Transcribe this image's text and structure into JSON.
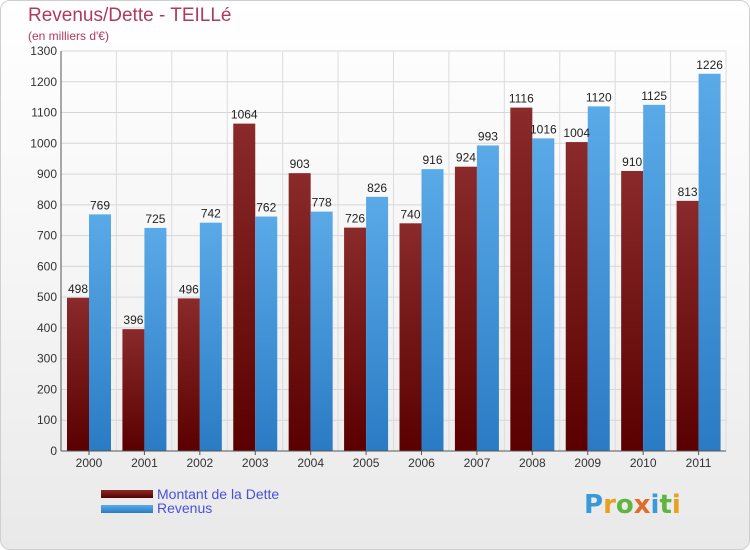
{
  "header": {
    "title": "Revenus/Dette - TEILLé",
    "subtitle": "(en milliers d'€)"
  },
  "colors": {
    "dette": "#7a1414",
    "revenus": "#4a9de2",
    "title": "#b03a5e",
    "legend_text": "#4a50d8"
  },
  "legend": {
    "dette_label": "Montant de la Dette",
    "revenus_label": "Revenus"
  },
  "logo": {
    "text": "Proxiti"
  },
  "chart_data": {
    "type": "bar",
    "title": "Revenus/Dette - TEILLé",
    "ylabel": "(en milliers d'€)",
    "xlabel": "",
    "categories": [
      "2000",
      "2001",
      "2002",
      "2003",
      "2004",
      "2005",
      "2006",
      "2007",
      "2008",
      "2009",
      "2010",
      "2011"
    ],
    "series": [
      {
        "name": "Montant de la Dette",
        "values": [
          498,
          396,
          496,
          1064,
          903,
          726,
          740,
          924,
          1116,
          1004,
          910,
          813
        ]
      },
      {
        "name": "Revenus",
        "values": [
          769,
          725,
          742,
          762,
          778,
          826,
          916,
          993,
          1016,
          1120,
          1125,
          1226
        ]
      }
    ],
    "ylim": [
      0,
      1300
    ],
    "yticks": [
      0,
      100,
      200,
      300,
      400,
      500,
      600,
      700,
      800,
      900,
      1000,
      1100,
      1200,
      1300
    ],
    "grid": true,
    "legend_position": "bottom-left"
  }
}
